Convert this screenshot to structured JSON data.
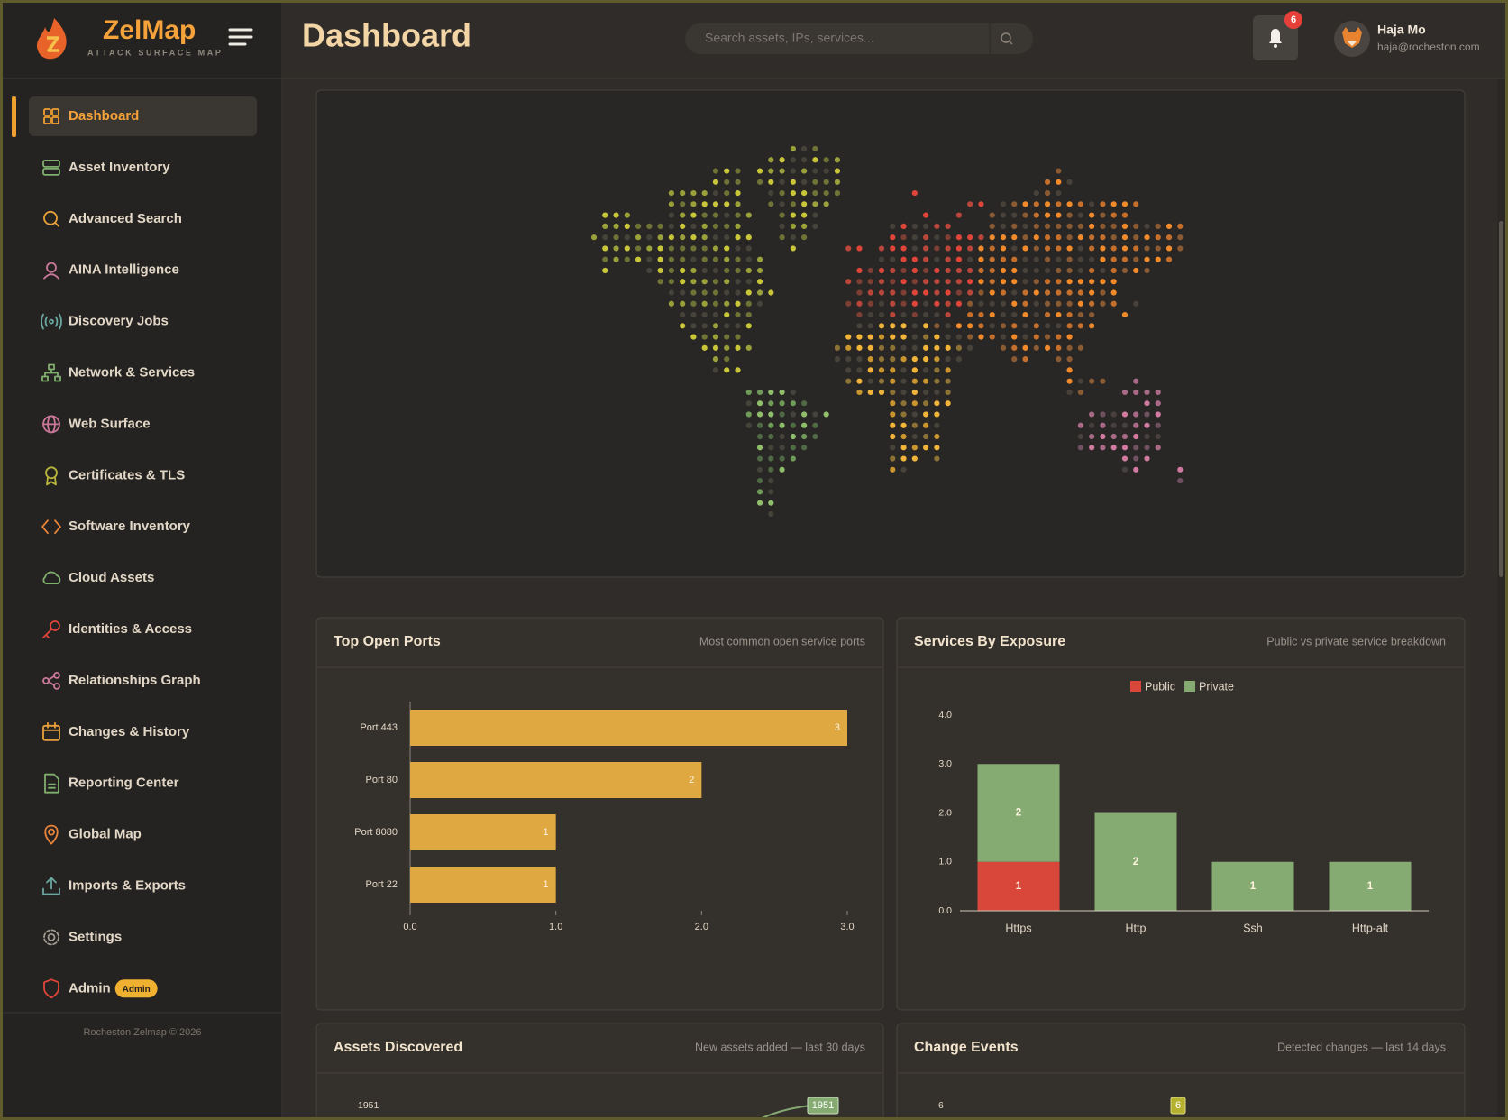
{
  "header": {
    "brand": "ZelMap",
    "tagline": "ATTACK SURFACE MAP",
    "title": "Dashboard",
    "search_placeholder": "Search assets, IPs, services...",
    "notifications": 6,
    "user": {
      "name": "Haja Mo",
      "email": "haja@rocheston.com"
    }
  },
  "sidebar": {
    "items": [
      {
        "label": "Dashboard",
        "active": true
      },
      {
        "label": "Asset Inventory"
      },
      {
        "label": "Advanced Search"
      },
      {
        "label": "AINA Intelligence"
      },
      {
        "label": "Discovery Jobs"
      },
      {
        "label": "Network & Services"
      },
      {
        "label": "Web Surface"
      },
      {
        "label": "Certificates & TLS"
      },
      {
        "label": "Software Inventory"
      },
      {
        "label": "Cloud Assets"
      },
      {
        "label": "Identities & Access"
      },
      {
        "label": "Relationships Graph"
      },
      {
        "label": "Changes & History"
      },
      {
        "label": "Reporting Center"
      },
      {
        "label": "Global Map"
      },
      {
        "label": "Imports & Exports"
      },
      {
        "label": "Settings"
      },
      {
        "label": "Admin",
        "badge": "Admin"
      }
    ],
    "footer": "Rocheston Zelmap © 2026"
  },
  "chart_data": [
    {
      "type": "hbar",
      "title": "Top Open Ports",
      "subtitle": "Most common open service ports",
      "categories": [
        "Port 443",
        "Port 80",
        "Port 8080",
        "Port 22"
      ],
      "values": [
        3,
        2,
        1,
        1
      ],
      "color": "#e0a840",
      "xlim": [
        0,
        3
      ],
      "xticks": [
        {
          "value": 0,
          "label": "0.0"
        },
        {
          "value": 1,
          "label": "1.0"
        },
        {
          "value": 2,
          "label": "2.0"
        },
        {
          "value": 3,
          "label": "3.0"
        }
      ]
    },
    {
      "type": "stacked",
      "title": "Services By Exposure",
      "subtitle": "Public vs private service breakdown",
      "categories": [
        "Https",
        "Http",
        "Ssh",
        "Http-alt"
      ],
      "series": [
        {
          "name": "Public",
          "color": "#d9473b",
          "values": [
            1,
            0,
            0,
            0
          ]
        },
        {
          "name": "Private",
          "color": "#85ab72",
          "values": [
            2,
            2,
            1,
            1
          ]
        }
      ],
      "ylim": [
        0,
        4
      ],
      "yticks": [
        {
          "value": 0,
          "label": "0.0"
        },
        {
          "value": 1,
          "label": "1.0"
        },
        {
          "value": 2,
          "label": "2.0"
        },
        {
          "value": 3,
          "label": "3.0"
        },
        {
          "value": 4,
          "label": "4.0"
        }
      ],
      "legend": "top"
    },
    {
      "type": "line",
      "title": "Assets Discovered",
      "subtitle": "New assets added — last 30 days",
      "yticks": [
        1951
      ],
      "last_value": 1951,
      "color": "#85ab72"
    },
    {
      "type": "bar",
      "title": "Change Events",
      "subtitle": "Detected changes — last 14 days",
      "yticks": [
        6
      ],
      "peak_value": 6,
      "color": "#b5b030"
    }
  ]
}
